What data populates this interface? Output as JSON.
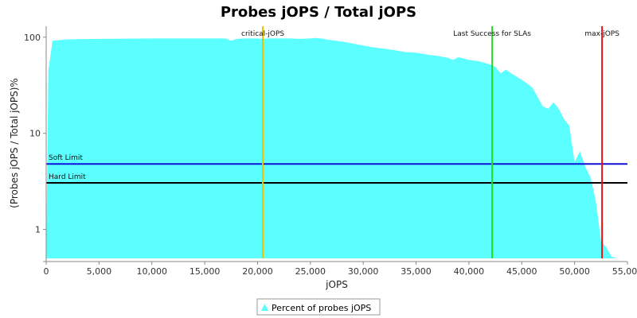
{
  "chart_data": {
    "type": "area",
    "title": "Probes jOPS / Total jOPS",
    "xlabel": "jOPS",
    "ylabel": "(Probes jOPS / Total jOPS)%",
    "yscale": "log",
    "xlim": [
      0,
      55000
    ],
    "ylim": [
      0.5,
      130
    ],
    "grid": false,
    "legend_position": "bottom-center",
    "colors": {
      "area": "#5BFFFF",
      "critical": "#E8C400",
      "last_success": "#22DD22",
      "max": "#E81010",
      "soft_limit": "#1010D8",
      "hard_limit": "#000000"
    },
    "x_ticks": [
      0,
      5000,
      10000,
      15000,
      20000,
      25000,
      30000,
      35000,
      40000,
      45000,
      50000,
      55000
    ],
    "x_tick_labels": [
      "0",
      "5,000",
      "10,000",
      "15,000",
      "20,000",
      "25,000",
      "30,000",
      "35,000",
      "40,000",
      "45,000",
      "50,000",
      "55,000"
    ],
    "y_ticks": [
      1,
      10,
      100
    ],
    "y_tick_labels": [
      "1",
      "10",
      "100"
    ],
    "series": [
      {
        "name": "Percent of probes jOPS",
        "x": [
          0,
          200,
          600,
          2000,
          5000,
          10000,
          15000,
          17000,
          17500,
          18000,
          19000,
          20000,
          20500,
          21000,
          22000,
          23000,
          24000,
          25000,
          25500,
          26000,
          27000,
          28000,
          29000,
          30000,
          31000,
          32000,
          33000,
          34000,
          35000,
          36000,
          37000,
          38000,
          38500,
          39000,
          39500,
          40000,
          41000,
          42000,
          42500,
          43000,
          43500,
          44000,
          45000,
          45500,
          46000,
          46500,
          47000,
          47500,
          48000,
          48500,
          49000,
          49500,
          50000,
          50500,
          51000,
          51500,
          52000,
          52500,
          53000,
          53500,
          54000,
          55000
        ],
        "values": [
          0.5,
          45,
          92,
          95,
          96,
          97,
          97,
          97,
          92,
          96,
          97,
          97,
          96,
          97,
          97,
          97,
          96,
          97,
          98,
          97,
          93,
          90,
          86,
          82,
          78,
          76,
          73,
          70,
          69,
          66,
          64,
          61,
          58,
          62,
          60,
          58,
          56,
          52,
          49,
          42,
          46,
          42,
          36,
          33,
          30,
          24,
          19,
          18,
          21,
          18,
          14,
          12,
          5,
          6.5,
          4.5,
          3.5,
          2,
          0.75,
          0.65,
          0.52,
          0.5,
          0.5
        ]
      }
    ],
    "vertical_markers": [
      {
        "label": "critical-jOPS",
        "x": 20500
      },
      {
        "label": "Last Success for SLAs",
        "x": 42200
      },
      {
        "label": "max-jOPS",
        "x": 52600
      }
    ],
    "horizontal_markers": [
      {
        "label": "Soft Limit",
        "y": 4.8
      },
      {
        "label": "Hard Limit",
        "y": 3.05
      }
    ]
  }
}
